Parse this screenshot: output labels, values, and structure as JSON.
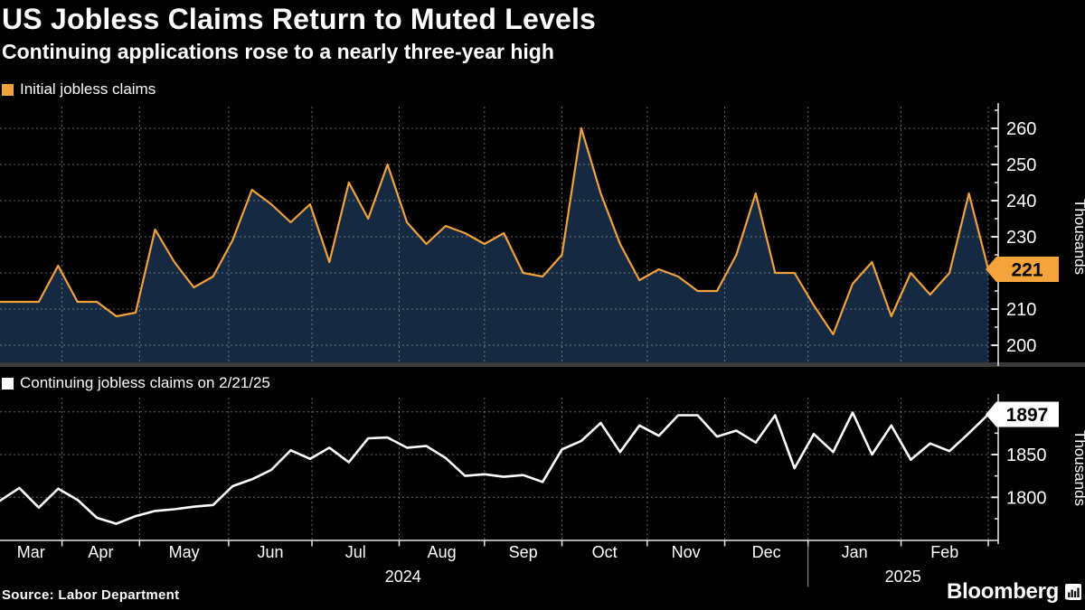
{
  "header": {
    "title": "US Jobless Claims Return to Muted Levels",
    "subtitle": "Continuing applications rose to a nearly three-year high"
  },
  "source": "Source: Labor Department",
  "brand": {
    "wordmark": "Bloomberg"
  },
  "colors": {
    "background": "#000000",
    "grid": "#c7ccd2",
    "axis": "#e8e8e8",
    "baseline_gray": "#3b3b3b",
    "badge_text": "#000000",
    "year_separator": "#9da2a8"
  },
  "x_axis": {
    "months": [
      {
        "label": "Mar",
        "start_week": 0
      },
      {
        "label": "Apr",
        "start_week": 3.2
      },
      {
        "label": "May",
        "start_week": 7.2
      },
      {
        "label": "Jun",
        "start_week": 11.8
      },
      {
        "label": "Jul",
        "start_week": 16.1
      },
      {
        "label": "Aug",
        "start_week": 20.6
      },
      {
        "label": "Sep",
        "start_week": 25.0
      },
      {
        "label": "Oct",
        "start_week": 29.0
      },
      {
        "label": "Nov",
        "start_week": 33.4
      },
      {
        "label": "Dec",
        "start_week": 37.4
      },
      {
        "label": "Jan",
        "start_week": 41.7
      },
      {
        "label": "Feb",
        "start_week": 46.5
      }
    ],
    "end_week": 51,
    "years": [
      {
        "label": "2024",
        "center_week": 20.8
      },
      {
        "label": "2025",
        "center_week": 46.6
      }
    ],
    "year_separator_week": 41.7
  },
  "chart_data": [
    {
      "type": "area",
      "legend": "Initial jobless claims",
      "unit": "Thousands",
      "color": "#f0a23e",
      "fill": "#152940",
      "badge_color": "#f5a43b",
      "ylim": [
        195,
        265
      ],
      "yticks_major": [
        200,
        210,
        220,
        230,
        240,
        250,
        260
      ],
      "yticks_minor": [
        205,
        215,
        225,
        235,
        245,
        255,
        265
      ],
      "last_value": 221,
      "last_value_label": "221",
      "values": [
        212,
        212,
        212,
        222,
        212,
        212,
        208,
        209,
        232,
        223,
        216,
        219,
        229,
        243,
        239,
        234,
        239,
        223,
        245,
        235,
        250,
        234,
        228,
        233,
        231,
        228,
        231,
        220,
        219,
        225,
        260,
        242,
        228,
        218,
        221,
        219,
        215,
        215,
        225,
        242,
        220,
        220,
        211,
        203,
        217,
        223,
        208,
        220,
        214,
        220,
        242,
        221
      ]
    },
    {
      "type": "line",
      "legend": "Continuing jobless claims on 2/21/25",
      "unit": "Thousands",
      "color": "#ffffff",
      "badge_color": "#ffffff",
      "ylim": [
        1750,
        1915
      ],
      "yticks_major": [
        1800,
        1850,
        1900
      ],
      "yticks_minor": [
        1775,
        1825,
        1875
      ],
      "last_value": 1897,
      "last_value_label": "1897",
      "values": [
        1796,
        1811,
        1788,
        1810,
        1797,
        1776,
        1769,
        1778,
        1784,
        1786,
        1789,
        1791,
        1813,
        1821,
        1832,
        1855,
        1845,
        1858,
        1841,
        1869,
        1870,
        1858,
        1860,
        1846,
        1825,
        1827,
        1824,
        1826,
        1818,
        1856,
        1866,
        1887,
        1853,
        1884,
        1872,
        1896,
        1896,
        1871,
        1878,
        1864,
        1896,
        1834,
        1874,
        1853,
        1899,
        1850,
        1884,
        1844,
        1863,
        1854,
        1875,
        1897
      ]
    }
  ]
}
